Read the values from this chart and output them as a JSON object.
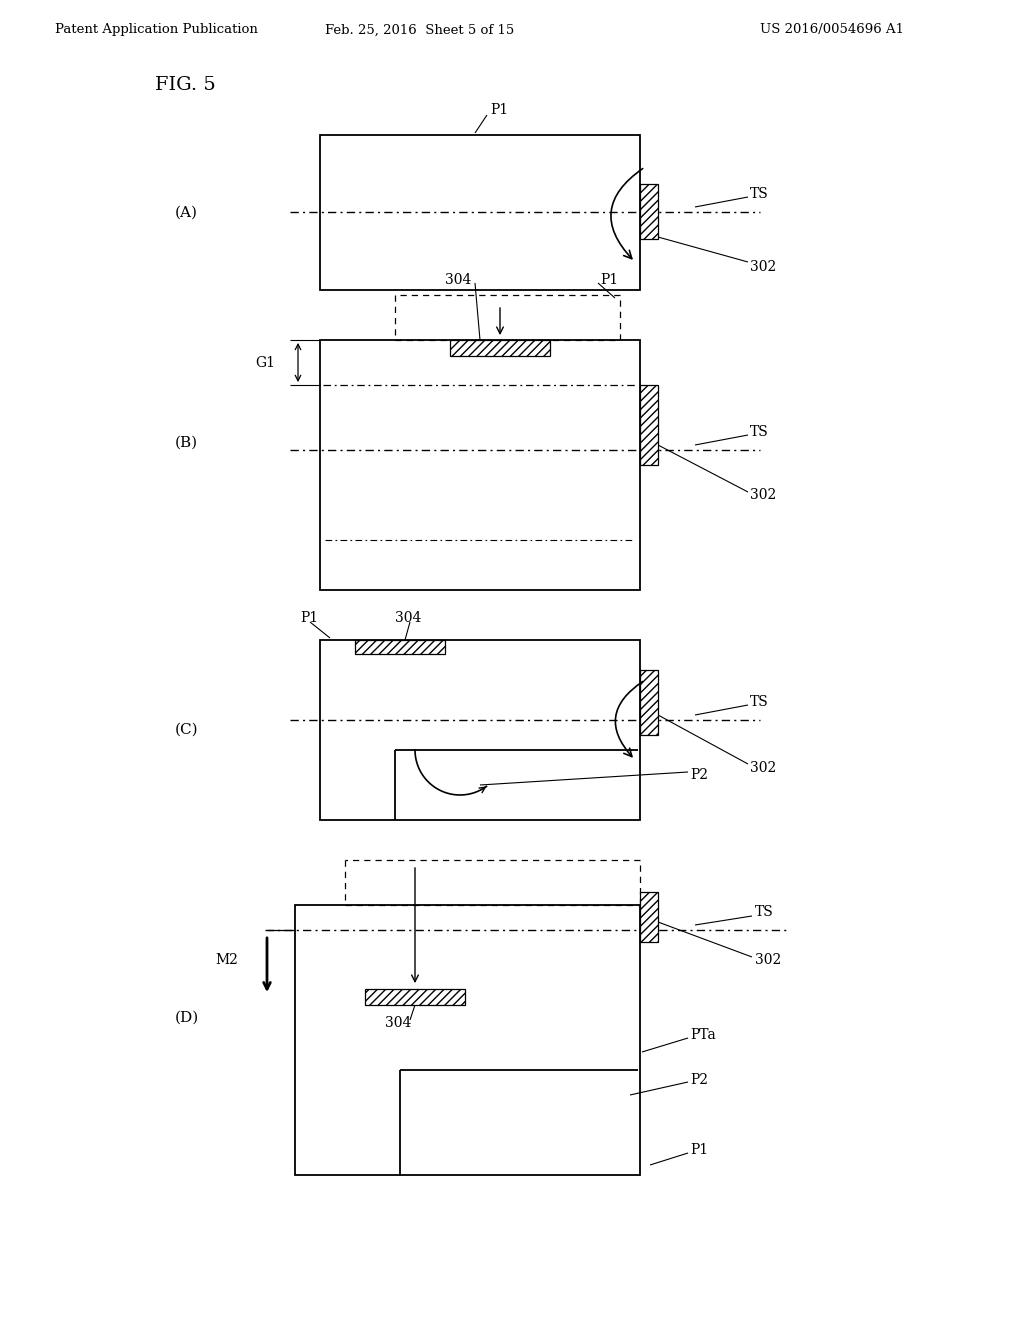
{
  "bg_color": "#ffffff",
  "header_left": "Patent Application Publication",
  "header_mid": "Feb. 25, 2016  Sheet 5 of 15",
  "header_right": "US 2016/0054696 A1",
  "fig_label": "FIG. 5"
}
